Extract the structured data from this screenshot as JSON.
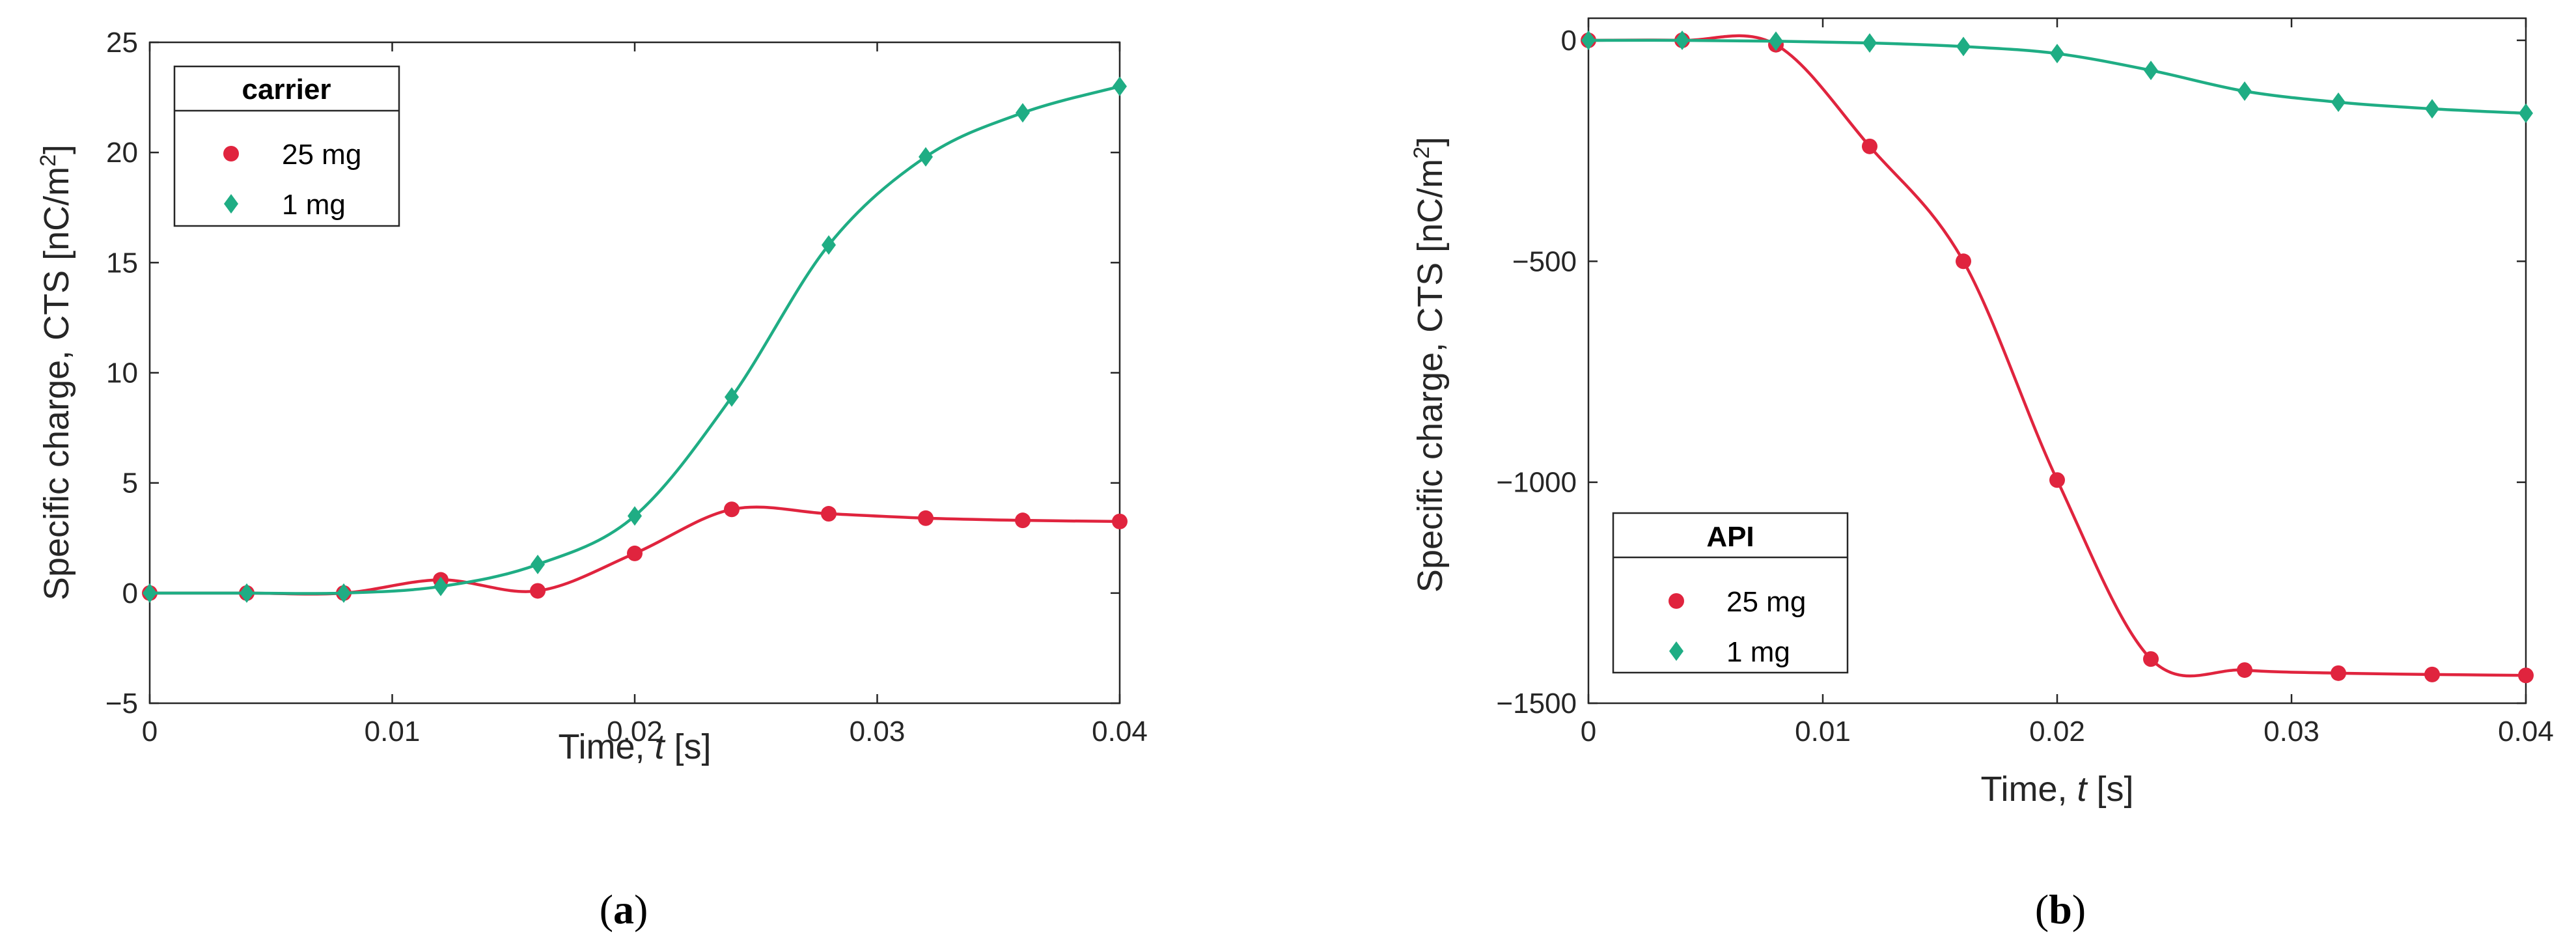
{
  "chart_data": [
    {
      "type": "line",
      "panel_label": "a",
      "legend_title": "carrier",
      "legend_position": "top-left",
      "xlabel_prefix": "Time, ",
      "xlabel_var": "t",
      "xlabel_suffix": " [s]",
      "ylabel_main": "Specific charge, CTS [nC/m",
      "ylabel_sup": "2",
      "ylabel_end": "]",
      "xlim": [
        0,
        0.04
      ],
      "ylim": [
        -5,
        25
      ],
      "xticks": [
        0,
        0.01,
        0.02,
        0.03,
        0.04
      ],
      "xtick_labels": [
        "0",
        "0.01",
        "0.02",
        "0.03",
        "0.04"
      ],
      "yticks": [
        -5,
        0,
        5,
        10,
        15,
        20,
        25
      ],
      "ytick_labels": [
        "-5",
        "0",
        "5",
        "10",
        "15",
        "20",
        "25"
      ],
      "series": [
        {
          "name": "25 mg",
          "color": "#e0243e",
          "marker": "circle",
          "x": [
            0,
            0.004,
            0.008,
            0.012,
            0.016,
            0.02,
            0.024,
            0.028,
            0.032,
            0.036,
            0.04
          ],
          "values": [
            0,
            0,
            0,
            0.6,
            0.1,
            1.8,
            3.8,
            3.6,
            3.4,
            3.3,
            3.25
          ]
        },
        {
          "name": "1 mg",
          "color": "#1fad84",
          "marker": "diamond",
          "x": [
            0,
            0.004,
            0.008,
            0.012,
            0.016,
            0.02,
            0.024,
            0.028,
            0.032,
            0.036,
            0.04
          ],
          "values": [
            0,
            0,
            0,
            0.3,
            1.3,
            3.5,
            8.9,
            15.8,
            19.8,
            21.8,
            23.0
          ]
        }
      ]
    },
    {
      "type": "line",
      "panel_label": "b",
      "legend_title": "API",
      "legend_position": "lower-left",
      "xlabel_prefix": "Time, ",
      "xlabel_var": "t",
      "xlabel_suffix": " [s]",
      "ylabel_main": "Specific charge, CTS [nC/m",
      "ylabel_sup": "2",
      "ylabel_end": "]",
      "xlim": [
        0,
        0.04
      ],
      "ylim": [
        -1500,
        50
      ],
      "xticks": [
        0,
        0.01,
        0.02,
        0.03,
        0.04
      ],
      "xtick_labels": [
        "0",
        "0.01",
        "0.02",
        "0.03",
        "0.04"
      ],
      "yticks": [
        -1500,
        -1000,
        -500,
        0
      ],
      "ytick_labels": [
        "-1500",
        "-1000",
        "-500",
        "0"
      ],
      "series": [
        {
          "name": "25 mg",
          "color": "#e0243e",
          "marker": "circle",
          "x": [
            0,
            0.004,
            0.008,
            0.012,
            0.016,
            0.02,
            0.024,
            0.028,
            0.032,
            0.036,
            0.04
          ],
          "values": [
            0,
            0,
            -10,
            -240,
            -500,
            -995,
            -1400,
            -1425,
            -1432,
            -1435,
            -1437
          ]
        },
        {
          "name": "1 mg",
          "color": "#1fad84",
          "marker": "diamond",
          "x": [
            0,
            0.004,
            0.008,
            0.012,
            0.016,
            0.02,
            0.024,
            0.028,
            0.032,
            0.036,
            0.04
          ],
          "values": [
            0,
            0,
            -2,
            -6,
            -14,
            -30,
            -68,
            -115,
            -140,
            -155,
            -165
          ]
        }
      ]
    }
  ]
}
